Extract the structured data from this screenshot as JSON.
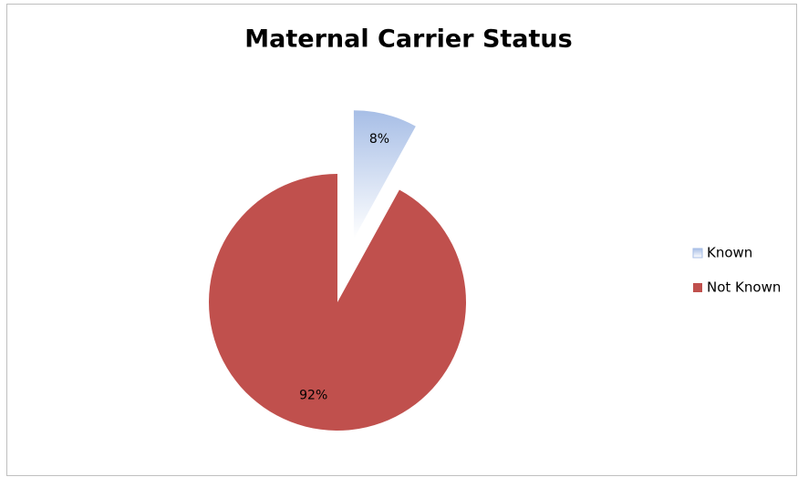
{
  "chart_data": {
    "type": "pie",
    "title": "Maternal Carrier Status",
    "categories": [
      "Known",
      "Not Known"
    ],
    "values": [
      8,
      92
    ],
    "value_labels": [
      "8%",
      "92%"
    ],
    "colors": [
      "#a7bee6",
      "#c0504d"
    ],
    "exploded": [
      true,
      false
    ],
    "legend": "right"
  }
}
